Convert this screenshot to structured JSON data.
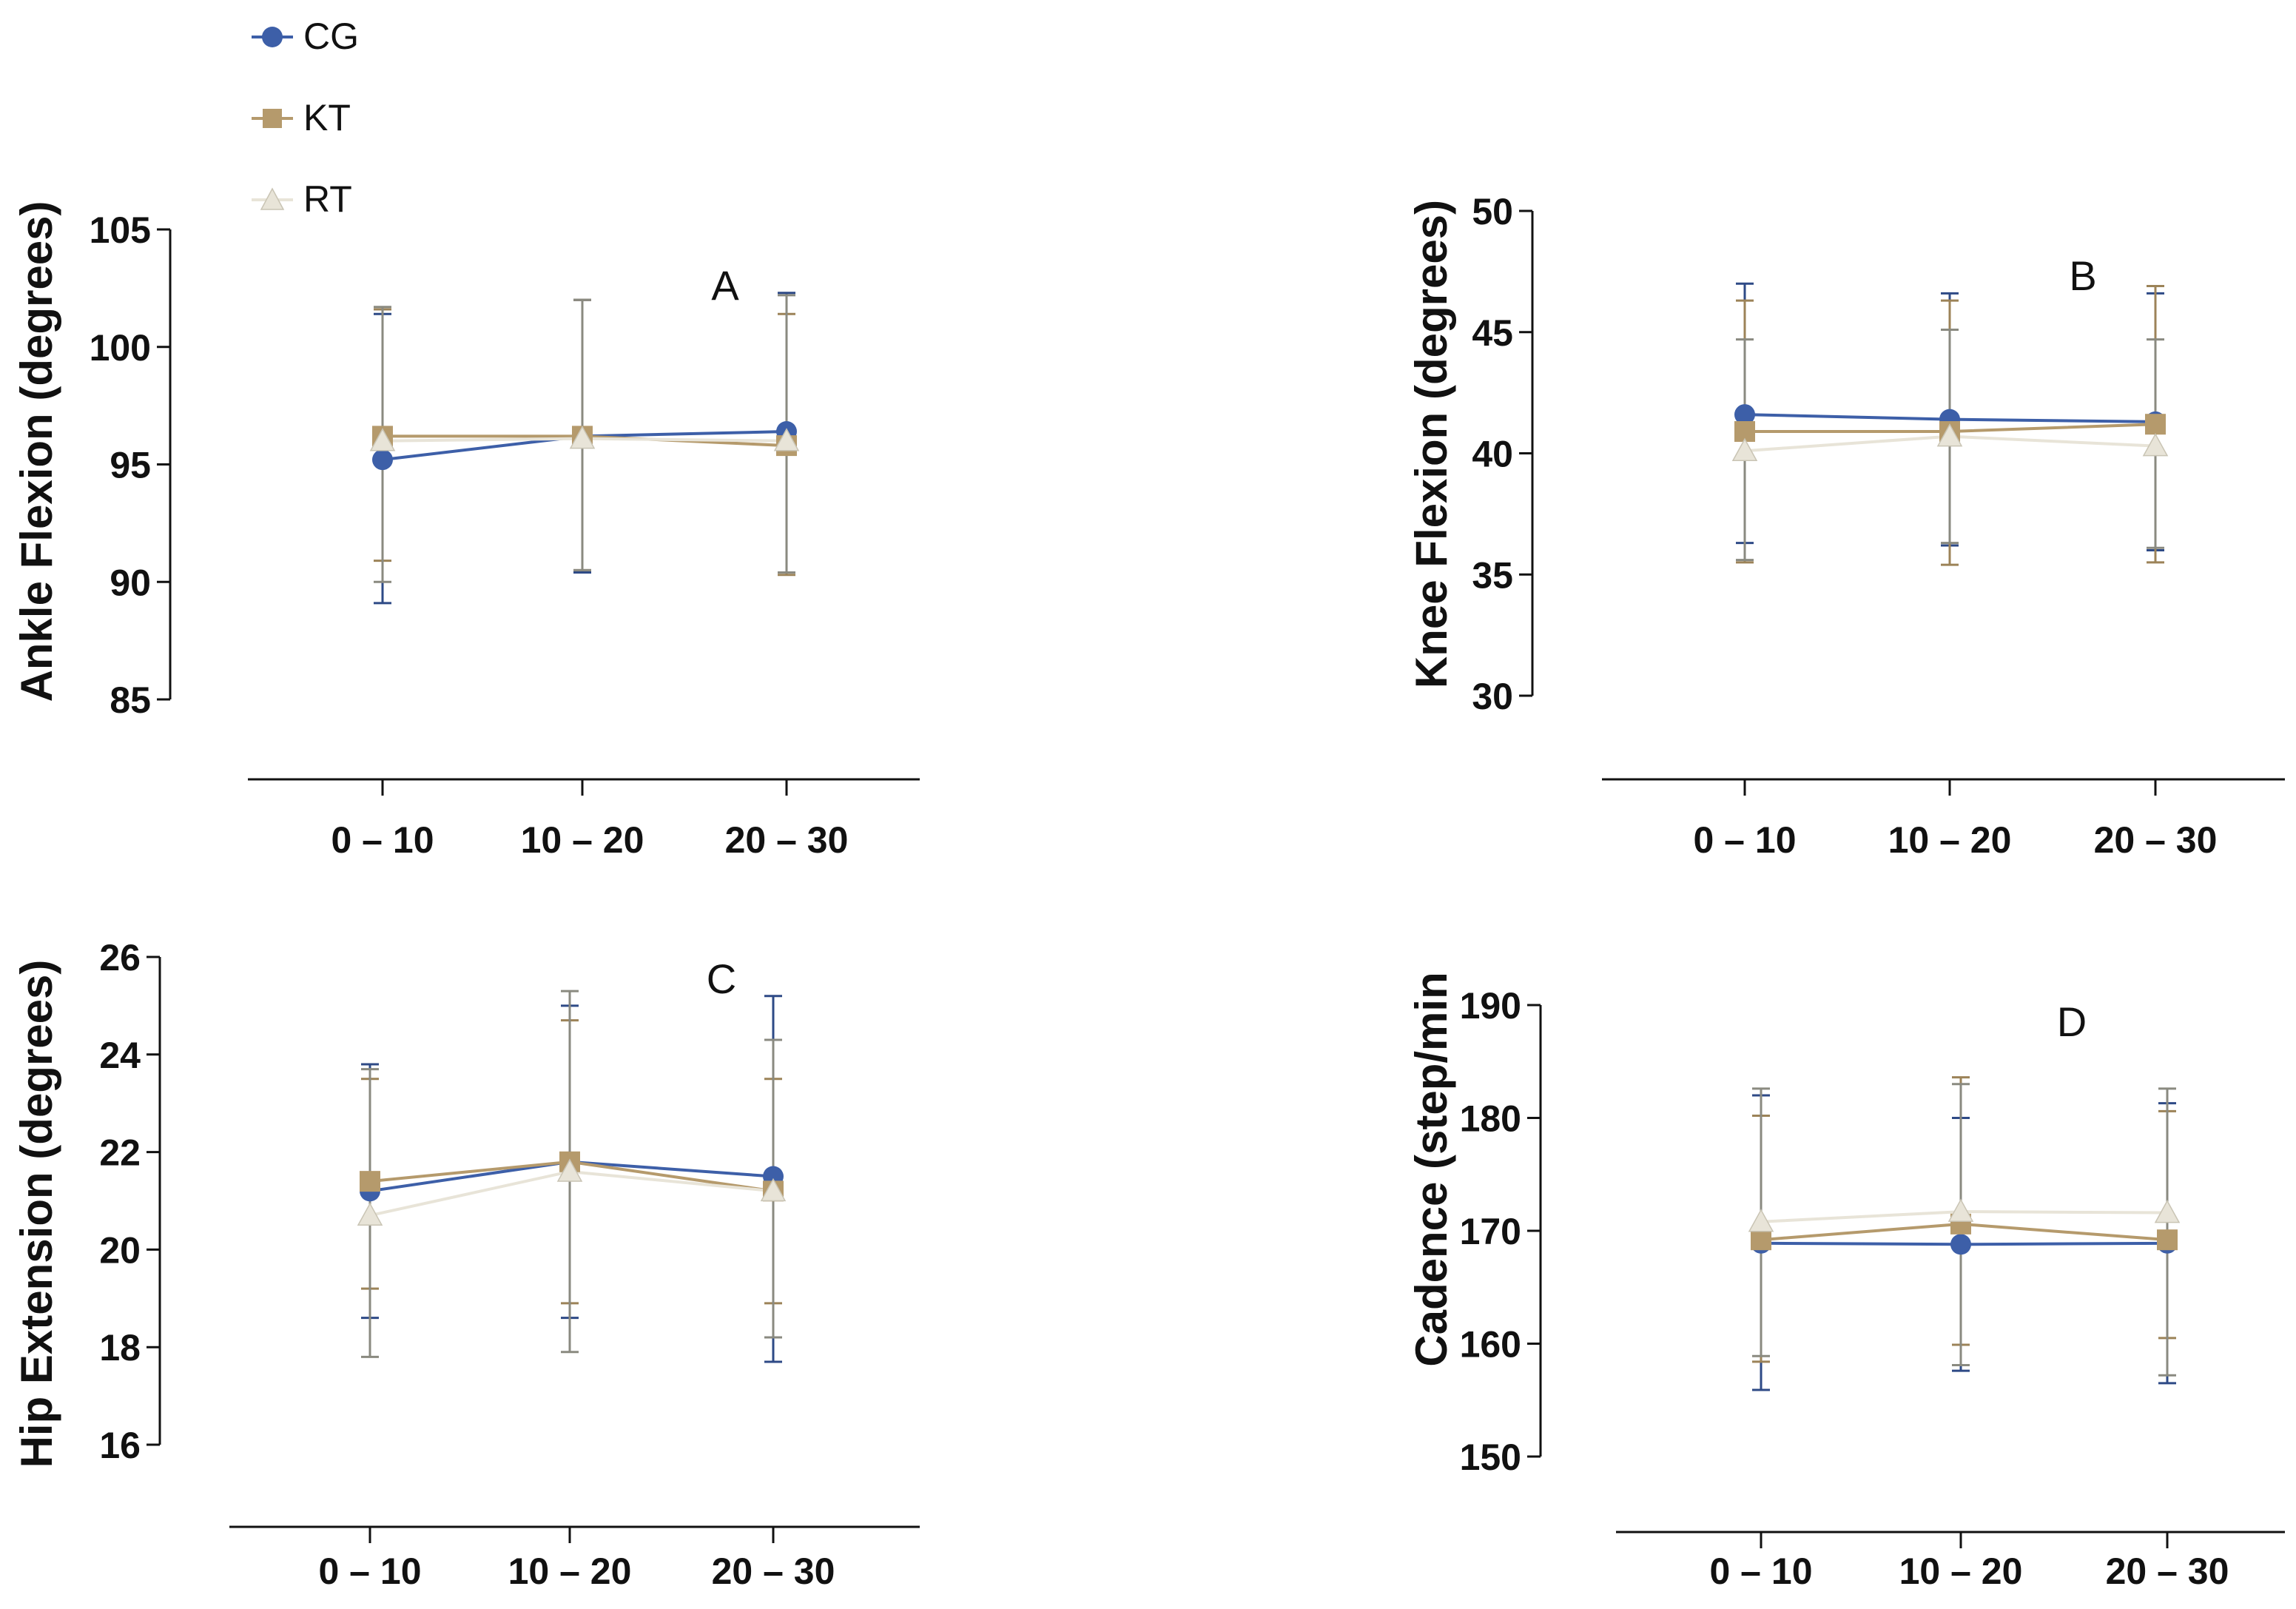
{
  "legend": [
    {
      "name": "CG",
      "color": "#3d5fa8",
      "marker": "circle"
    },
    {
      "name": "KT",
      "color": "#b59a6c",
      "marker": "square"
    },
    {
      "name": "RT",
      "color": "#e8e4d8",
      "marker": "triangle"
    }
  ],
  "chart_data": [
    {
      "type": "line",
      "panel_letter": "A",
      "ylabel": "Ankle Flexion (degrees)",
      "categories": [
        "0 – 10",
        "10 – 20",
        "20 – 30"
      ],
      "ylim": [
        85,
        105
      ],
      "yticks": [
        "85",
        "90",
        "95",
        "100",
        "105"
      ],
      "series": [
        {
          "name": "CG",
          "values": [
            95.2,
            96.2,
            96.4
          ],
          "err_low": [
            89.1,
            90.4,
            90.4
          ],
          "err_high": [
            101.4,
            102.0,
            102.3
          ]
        },
        {
          "name": "KT",
          "values": [
            96.2,
            96.2,
            95.8
          ],
          "err_low": [
            90.9,
            90.5,
            90.3
          ],
          "err_high": [
            101.6,
            102.0,
            101.4
          ]
        },
        {
          "name": "RT",
          "values": [
            96.0,
            96.1,
            96.0
          ],
          "err_low": [
            90.0,
            90.5,
            90.4
          ],
          "err_high": [
            101.7,
            102.0,
            102.2
          ]
        }
      ]
    },
    {
      "type": "line",
      "panel_letter": "B",
      "ylabel": "Knee Flexion (degrees)",
      "categories": [
        "0 – 10",
        "10 – 20",
        "20 – 30"
      ],
      "ylim": [
        30,
        50
      ],
      "yticks": [
        "30",
        "35",
        "40",
        "45",
        "50"
      ],
      "series": [
        {
          "name": "CG",
          "values": [
            41.6,
            41.4,
            41.3
          ],
          "err_low": [
            36.3,
            36.2,
            36.0
          ],
          "err_high": [
            47.0,
            46.6,
            46.6
          ]
        },
        {
          "name": "KT",
          "values": [
            40.9,
            40.9,
            41.2
          ],
          "err_low": [
            35.5,
            35.4,
            35.5
          ],
          "err_high": [
            46.3,
            46.3,
            46.9
          ]
        },
        {
          "name": "RT",
          "values": [
            40.1,
            40.7,
            40.3
          ],
          "err_low": [
            35.6,
            36.3,
            36.1
          ],
          "err_high": [
            44.7,
            45.1,
            44.7
          ]
        }
      ]
    },
    {
      "type": "line",
      "panel_letter": "C",
      "ylabel": "Hip Extension (degrees)",
      "categories": [
        "0 – 10",
        "10 – 20",
        "20 – 30"
      ],
      "ylim": [
        16,
        26
      ],
      "yticks": [
        "16",
        "18",
        "20",
        "22",
        "24",
        "26"
      ],
      "series": [
        {
          "name": "CG",
          "values": [
            21.2,
            21.8,
            21.5
          ],
          "err_low": [
            18.6,
            18.6,
            17.7
          ],
          "err_high": [
            23.8,
            25.0,
            25.2
          ]
        },
        {
          "name": "KT",
          "values": [
            21.4,
            21.8,
            21.2
          ],
          "err_low": [
            19.2,
            18.9,
            18.9
          ],
          "err_high": [
            23.5,
            24.7,
            23.5
          ]
        },
        {
          "name": "RT",
          "values": [
            20.7,
            21.6,
            21.2
          ],
          "err_low": [
            17.8,
            17.9,
            18.2
          ],
          "err_high": [
            23.7,
            25.3,
            24.3
          ]
        }
      ]
    },
    {
      "type": "line",
      "panel_letter": "D",
      "ylabel": "Cadence (step/min",
      "categories": [
        "0 – 10",
        "10 – 20",
        "20 – 30"
      ],
      "ylim": [
        150,
        190
      ],
      "yticks": [
        "150",
        "160",
        "170",
        "180",
        "190"
      ],
      "series": [
        {
          "name": "CG",
          "values": [
            168.9,
            168.8,
            168.9
          ],
          "err_low": [
            155.9,
            157.6,
            156.5
          ],
          "err_high": [
            182.0,
            180.0,
            181.3
          ]
        },
        {
          "name": "KT",
          "values": [
            169.2,
            170.6,
            169.2
          ],
          "err_low": [
            158.4,
            159.9,
            160.5
          ],
          "err_high": [
            180.2,
            183.6,
            180.6
          ]
        },
        {
          "name": "RT",
          "values": [
            170.8,
            171.7,
            171.6
          ],
          "err_low": [
            158.9,
            158.1,
            157.2
          ],
          "err_high": [
            182.6,
            183.0,
            182.6
          ]
        }
      ]
    }
  ]
}
